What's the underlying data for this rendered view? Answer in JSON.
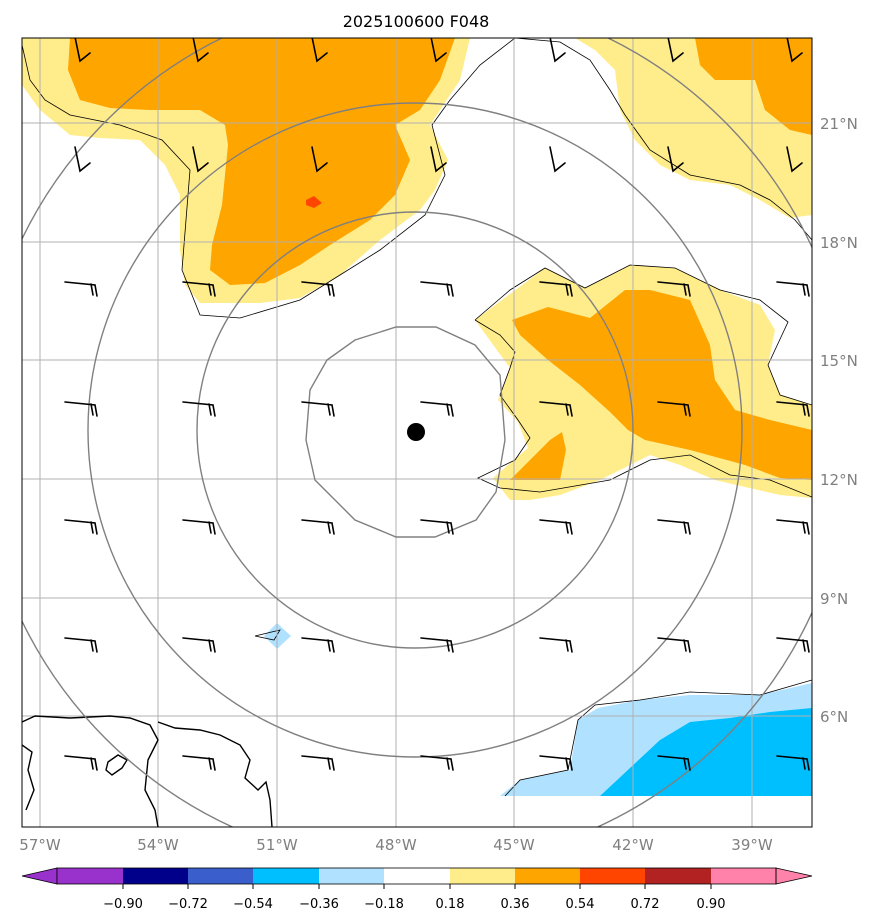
{
  "title": "2025100600 F048",
  "map": {
    "lon_range": [
      -57.5,
      -37.5
    ],
    "lat_range": [
      3.5,
      23.5
    ],
    "lon_ticks": [
      {
        "value": -57,
        "label": "57°W"
      },
      {
        "value": -54,
        "label": "54°W"
      },
      {
        "value": -51,
        "label": "51°W"
      },
      {
        "value": -48,
        "label": "48°W"
      },
      {
        "value": -45,
        "label": "45°W"
      },
      {
        "value": -42,
        "label": "42°W"
      },
      {
        "value": -39,
        "label": "39°W"
      }
    ],
    "lat_ticks": [
      {
        "value": 6,
        "label": "6°N"
      },
      {
        "value": 9,
        "label": "9°N"
      },
      {
        "value": 12,
        "label": "12°N"
      },
      {
        "value": 15,
        "label": "15°N"
      },
      {
        "value": 18,
        "label": "18°N"
      },
      {
        "value": 21,
        "label": "21°N"
      }
    ],
    "storm_center": {
      "lon": -47.5,
      "lat": 13.2
    },
    "range_rings": 4,
    "grid": true,
    "colors": {
      "grid": "#b0b0b0",
      "rings": "#808080",
      "barbs": "#000000",
      "coast": "#000000",
      "level_018_036": "#ffec8b",
      "level_036_054": "#ffa500",
      "level_054_072": "#ff4500",
      "level_m036_m018": "#b0e2ff",
      "level_m054_m036": "#00bfff"
    }
  },
  "colorbar": {
    "extend": "both",
    "colors": [
      "#9932cc",
      "#00008b",
      "#3a5fcd",
      "#00bfff",
      "#b0e2ff",
      "#ffffff",
      "#ffec8b",
      "#ffa500",
      "#ff4500",
      "#b22222",
      "#ff82ab"
    ],
    "tick_labels": [
      "−0.90",
      "−0.72",
      "−0.54",
      "−0.36",
      "−0.18",
      "0.18",
      "0.36",
      "0.54",
      "0.72",
      "0.90"
    ]
  }
}
